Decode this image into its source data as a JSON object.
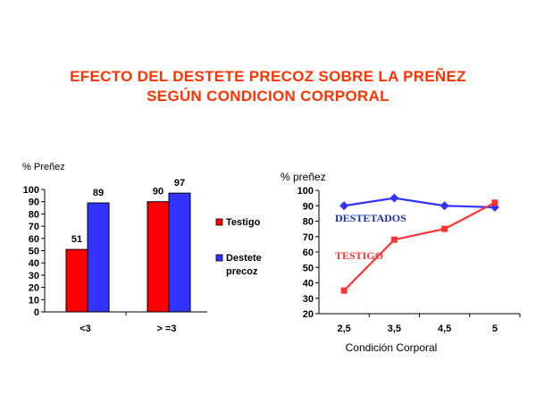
{
  "page": {
    "title_line1": "EFECTO DEL DESTETE PRECOZ SOBRE LA PREÑEZ",
    "title_line2": "SEGÚN CONDICION CORPORAL"
  },
  "chart_data": [
    {
      "type": "bar",
      "ylabel": "% Preñez",
      "ylim": [
        0,
        100
      ],
      "yticks": [
        0,
        10,
        20,
        30,
        40,
        50,
        60,
        70,
        80,
        90,
        100
      ],
      "categories": [
        "<3",
        "> =3"
      ],
      "series": [
        {
          "name": "Testigo",
          "color": "#ff0000",
          "values": [
            51,
            90
          ]
        },
        {
          "name": "Destete precoz",
          "color": "#3333ff",
          "values": [
            89,
            97
          ]
        }
      ],
      "data_labels": true,
      "legend_placement": "right",
      "grid": false
    },
    {
      "type": "line",
      "ylabel": "% preñez",
      "xlabel": "Condición Corporal",
      "ylim": [
        20,
        100
      ],
      "yticks": [
        20,
        30,
        40,
        50,
        60,
        70,
        80,
        90,
        100
      ],
      "categories": [
        "2,5",
        "3,5",
        "4,5",
        "5"
      ],
      "series": [
        {
          "name": "DESTETADOS",
          "color": "#3333ff",
          "marker": "diamond",
          "values": [
            90,
            95,
            90,
            89
          ]
        },
        {
          "name": "TESTIGO",
          "color": "#ff3333",
          "marker": "square",
          "values": [
            35,
            68,
            75,
            92
          ]
        }
      ],
      "legend_placement": "inline labels",
      "grid": false
    }
  ]
}
